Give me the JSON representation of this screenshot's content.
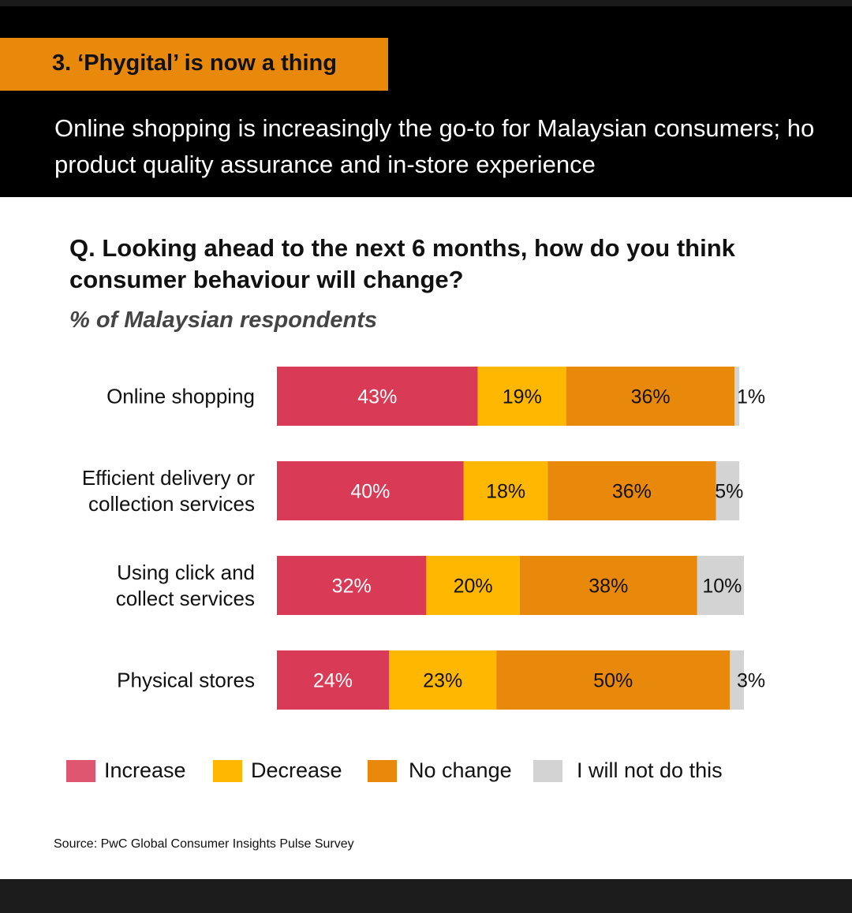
{
  "section_tag": "3. ‘Phygital’ is now a thing",
  "subtitle_line1": "Online shopping is increasingly the go-to for Malaysian consumers; ho",
  "subtitle_line2": "product quality assurance and in-store experience",
  "source": "Source: PwC Global Consumer Insights Pulse Survey",
  "colors": {
    "increase": "#d93a55",
    "decrease": "#ffb700",
    "no_change": "#e8890c",
    "will_not": "#d3d3d3"
  },
  "chart_data": {
    "type": "bar",
    "orientation": "horizontal",
    "stacked": true,
    "title": "Q. Looking ahead to the next 6 months, how do you think consumer behaviour will change?",
    "unit_label": "% of Malaysian respondents",
    "categories": [
      "Online shopping",
      "Efficient delivery or collection services",
      "Using click and collect services",
      "Physical stores"
    ],
    "category_lines": [
      [
        "Online shopping"
      ],
      [
        "Efficient delivery or",
        "collection services"
      ],
      [
        "Using click and",
        "collect services"
      ],
      [
        "Physical stores"
      ]
    ],
    "series": [
      {
        "name": "Increase",
        "color": "#d93a55",
        "values": [
          43,
          40,
          32,
          24
        ],
        "labels": [
          "43%",
          "40%",
          "32%",
          "24%"
        ]
      },
      {
        "name": "Decrease",
        "color": "#ffb700",
        "values": [
          19,
          18,
          20,
          23
        ],
        "labels": [
          "19%",
          "18%",
          "20%",
          "23%"
        ]
      },
      {
        "name": "No change",
        "color": "#e8890c",
        "values": [
          36,
          36,
          38,
          50
        ],
        "labels": [
          "36%",
          "36%",
          "38%",
          "50%"
        ]
      },
      {
        "name": "I will not do this",
        "color": "#d3d3d3",
        "values": [
          1,
          5,
          10,
          3
        ],
        "labels": [
          "1%",
          "5%",
          "10%",
          "3%"
        ]
      }
    ],
    "xlim": [
      0,
      100
    ],
    "grid": false,
    "legend_position": "bottom"
  }
}
